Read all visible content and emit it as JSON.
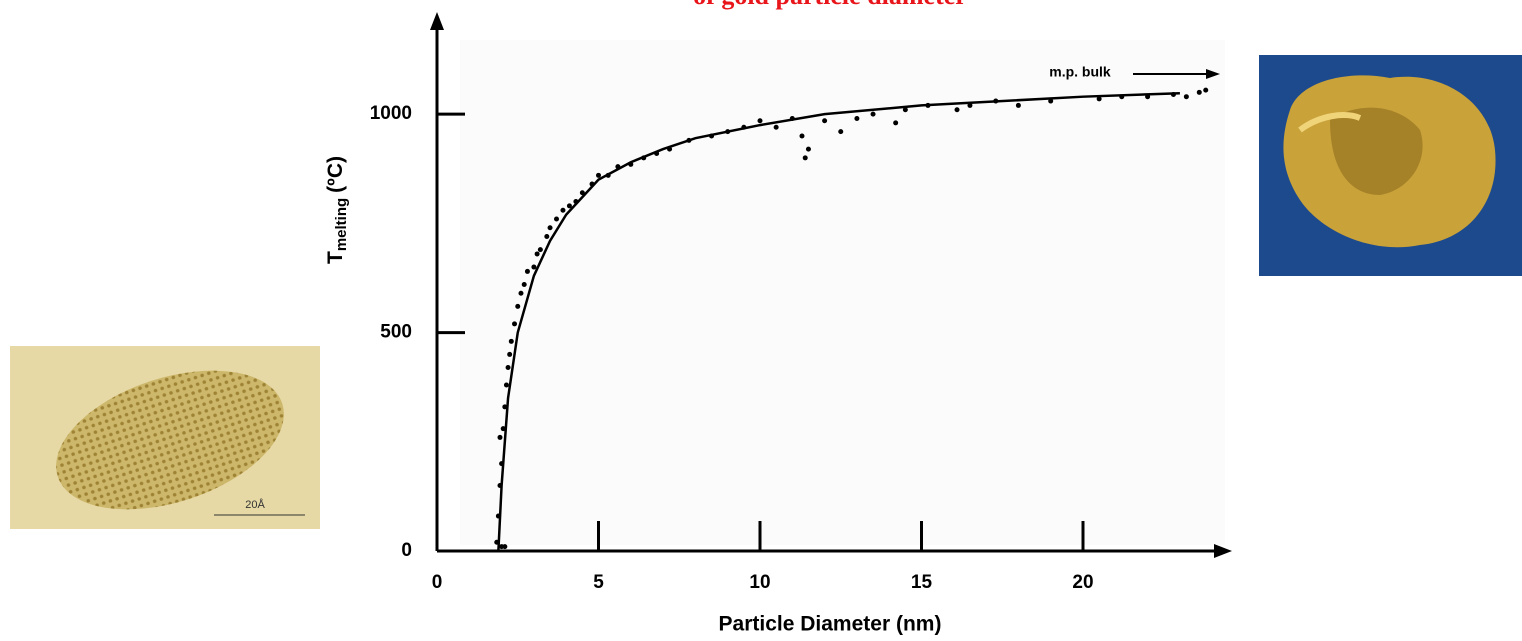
{
  "chart_data": {
    "type": "scatter",
    "title": "of gold particle diameter",
    "x_label": "Particle Diameter (nm)",
    "y_label": {
      "main": "T",
      "sub": "melting",
      "unit": "(ºC)"
    },
    "annotation": "m.p. bulk",
    "image_scale_label": "20Å",
    "xlim": [
      0,
      24.4
    ],
    "ylim": [
      0,
      1227
    ],
    "xticks": [
      0,
      5,
      10,
      15,
      20
    ],
    "yticks": [
      0,
      500,
      1000
    ],
    "points": {
      "color": "#000000",
      "x": [
        1.85,
        1.9,
        1.95,
        2.0,
        2.05,
        2.1,
        2.15,
        2.2,
        2.0,
        2.1,
        1.95,
        2.25,
        2.3,
        2.4,
        2.5,
        2.6,
        2.7,
        2.8,
        3.0,
        3.1,
        3.2,
        3.4,
        3.5,
        3.7,
        3.9,
        4.1,
        4.3,
        4.5,
        4.8,
        5.0,
        5.3,
        5.6,
        6.0,
        6.4,
        6.8,
        7.2,
        7.8,
        8.5,
        9.0,
        9.5,
        10.0,
        10.5,
        11.0,
        11.3,
        11.5,
        11.4,
        12.0,
        12.5,
        13.0,
        13.5,
        14.2,
        14.5,
        15.2,
        16.1,
        16.5,
        17.3,
        18.0,
        19.0,
        20.5,
        21.2,
        22.0,
        22.8,
        23.2,
        23.6,
        23.8
      ],
      "y": [
        20,
        80,
        150,
        200,
        280,
        330,
        380,
        420,
        10,
        10,
        260,
        450,
        480,
        520,
        560,
        590,
        610,
        640,
        650,
        680,
        690,
        720,
        740,
        760,
        780,
        790,
        800,
        820,
        840,
        860,
        860,
        880,
        885,
        900,
        910,
        920,
        940,
        950,
        960,
        970,
        985,
        970,
        990,
        950,
        920,
        900,
        985,
        960,
        990,
        1000,
        980,
        1010,
        1020,
        1010,
        1020,
        1030,
        1020,
        1030,
        1035,
        1040,
        1040,
        1045,
        1040,
        1050,
        1055
      ]
    },
    "curve": {
      "color": "#000000",
      "x": [
        1.9,
        2.0,
        2.2,
        2.5,
        3,
        3.5,
        4,
        5,
        6,
        7,
        8,
        10,
        12,
        15,
        20,
        23
      ],
      "y": [
        0,
        150,
        350,
        500,
        630,
        710,
        770,
        850,
        890,
        920,
        945,
        975,
        1000,
        1020,
        1040,
        1048
      ]
    }
  }
}
